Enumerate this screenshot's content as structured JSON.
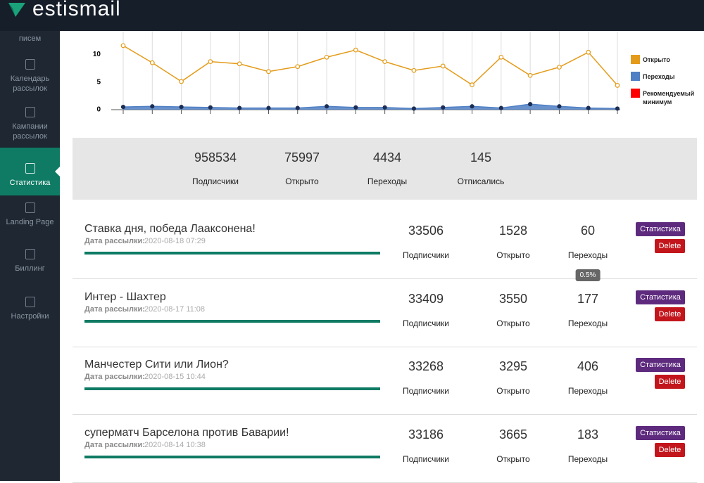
{
  "header": {
    "logo": "estismail"
  },
  "sidebar": {
    "items": [
      {
        "lines": [
          "писем"
        ]
      },
      {
        "lines": [
          "Календарь",
          "рассылок"
        ]
      },
      {
        "lines": [
          "Кампании",
          "рассылок"
        ]
      },
      {
        "lines": [
          "Статистика"
        ],
        "active": true
      },
      {
        "lines": [
          "Landing Page"
        ]
      },
      {
        "lines": [
          "Биллинг"
        ]
      },
      {
        "lines": [
          "Настройки"
        ]
      }
    ]
  },
  "chart": {
    "type": "line",
    "ylim": [
      0,
      14
    ],
    "yticks": [
      0,
      5,
      10
    ],
    "legend": "right",
    "series": [
      {
        "name": "Открыто",
        "color": "#e49b1a",
        "values": [
          11.6,
          8.5,
          5.1,
          8.7,
          8.3,
          6.9,
          7.8,
          9.5,
          10.8,
          8.7,
          7.1,
          7.9,
          4.5,
          9.5,
          6.2,
          7.7,
          10.4,
          4.4
        ]
      },
      {
        "name": "Переходы",
        "color": "#4f7fc4",
        "values": [
          0.5,
          0.6,
          0.5,
          0.4,
          0.3,
          0.3,
          0.3,
          0.6,
          0.4,
          0.4,
          0.2,
          0.4,
          0.6,
          0.3,
          1.0,
          0.6,
          0.3,
          0.2
        ]
      },
      {
        "name": "Рекомендуемый минимум",
        "color": "#ff0000"
      }
    ]
  },
  "summary": [
    {
      "value": 958534,
      "label": "Подписчики"
    },
    {
      "value": 75997,
      "label": "Открыто"
    },
    {
      "value": 4434,
      "label": "Переходы"
    },
    {
      "value": 145,
      "label": "Отписались"
    }
  ],
  "list": {
    "column_labels": [
      "Подписчики",
      "Открыто",
      "Переходы"
    ],
    "date_label": "Дата рассылки:",
    "buttons": [
      "Статистика",
      "Delete"
    ],
    "rows": [
      {
        "title": "Ставка дня, победа Лааксонена!",
        "date": "2020-08-18 07:29",
        "values": [
          33506,
          1528,
          60
        ]
      },
      {
        "title": "Интер - Шахтер",
        "date": "2020-08-17 11:08",
        "values": [
          33409,
          3550,
          177
        ],
        "tooltip": "0.5%"
      },
      {
        "title": "Манчестер Сити или Лион?",
        "date": "2020-08-15 10:44",
        "values": [
          33268,
          3295,
          406
        ]
      },
      {
        "title": "суперматч Барселона против Баварии!",
        "date": "2020-08-14 10:38",
        "values": [
          33186,
          3665,
          183
        ]
      }
    ]
  }
}
